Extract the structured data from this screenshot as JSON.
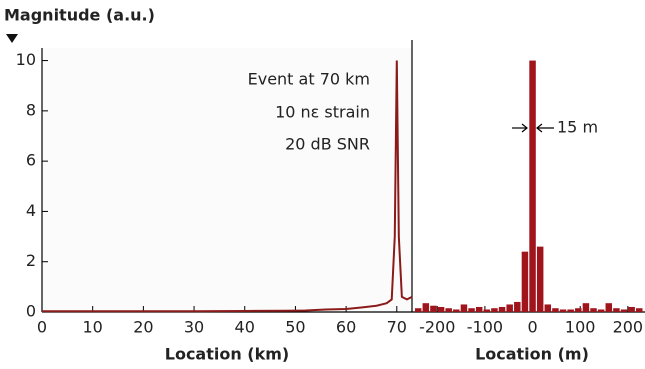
{
  "chart_data": [
    {
      "type": "line",
      "y_label": "Magnitude (a.u.)",
      "x_label": "Location (km)",
      "annotations": [
        "Event at 70 km",
        "10 nε strain",
        "20 dB SNR"
      ],
      "xlim": [
        0,
        73
      ],
      "ylim": [
        0,
        10.5
      ],
      "xticks": [
        0,
        10,
        20,
        30,
        40,
        50,
        60,
        70
      ],
      "yticks": [
        0,
        2,
        4,
        6,
        8,
        10
      ],
      "series": [
        {
          "color": "#8b1a1a",
          "x": [
            0,
            10,
            20,
            30,
            40,
            48,
            52,
            56,
            60,
            63,
            66,
            68,
            69,
            69.6,
            70,
            70.4,
            71,
            72,
            73
          ],
          "values": [
            0.03,
            0.03,
            0.03,
            0.03,
            0.04,
            0.05,
            0.06,
            0.1,
            0.12,
            0.18,
            0.25,
            0.35,
            0.5,
            3,
            10,
            3,
            0.6,
            0.5,
            0.6
          ]
        }
      ]
    },
    {
      "type": "bar",
      "x_label": "Location (m)",
      "annotations": [
        "15 m"
      ],
      "xlim": [
        -253,
        236
      ],
      "ylim": [
        0,
        10.5
      ],
      "xticks": [
        -200,
        -100,
        0,
        100,
        200
      ],
      "series": [
        {
          "color": "#a0141c",
          "x": [
            -240,
            -224,
            -208,
            -192,
            -176,
            -160,
            -144,
            -128,
            -112,
            -96,
            -80,
            -64,
            -48,
            -32,
            -16,
            0,
            16,
            32,
            48,
            64,
            80,
            96,
            112,
            128,
            144,
            160,
            176,
            192,
            208,
            224
          ],
          "values": [
            0.15,
            0.35,
            0.25,
            0.2,
            0.15,
            0.1,
            0.3,
            0.15,
            0.2,
            0.1,
            0.15,
            0.2,
            0.3,
            0.4,
            2.4,
            10,
            2.6,
            0.3,
            0.15,
            0.1,
            0.1,
            0.15,
            0.35,
            0.15,
            0.1,
            0.35,
            0.15,
            0.1,
            0.2,
            0.15
          ]
        }
      ]
    }
  ]
}
